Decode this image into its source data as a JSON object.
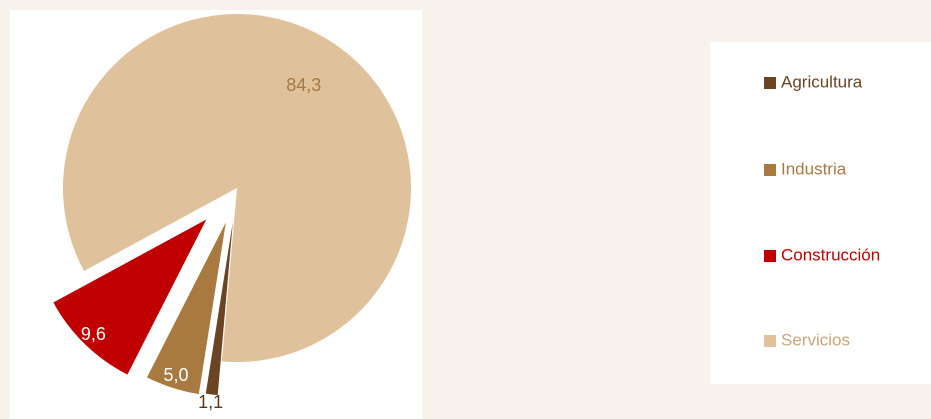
{
  "chart_data": {
    "type": "pie",
    "categories": [
      "Agricultura",
      "Industria",
      "Construcción",
      "Servicios"
    ],
    "values": [
      1.1,
      5.0,
      9.6,
      84.3
    ],
    "value_labels": [
      "1,1",
      "5,0",
      "9,6",
      "84,3"
    ],
    "colors": [
      "#6b4423",
      "#a87a40",
      "#c00000",
      "#dfc19c"
    ],
    "legend": "right"
  }
}
